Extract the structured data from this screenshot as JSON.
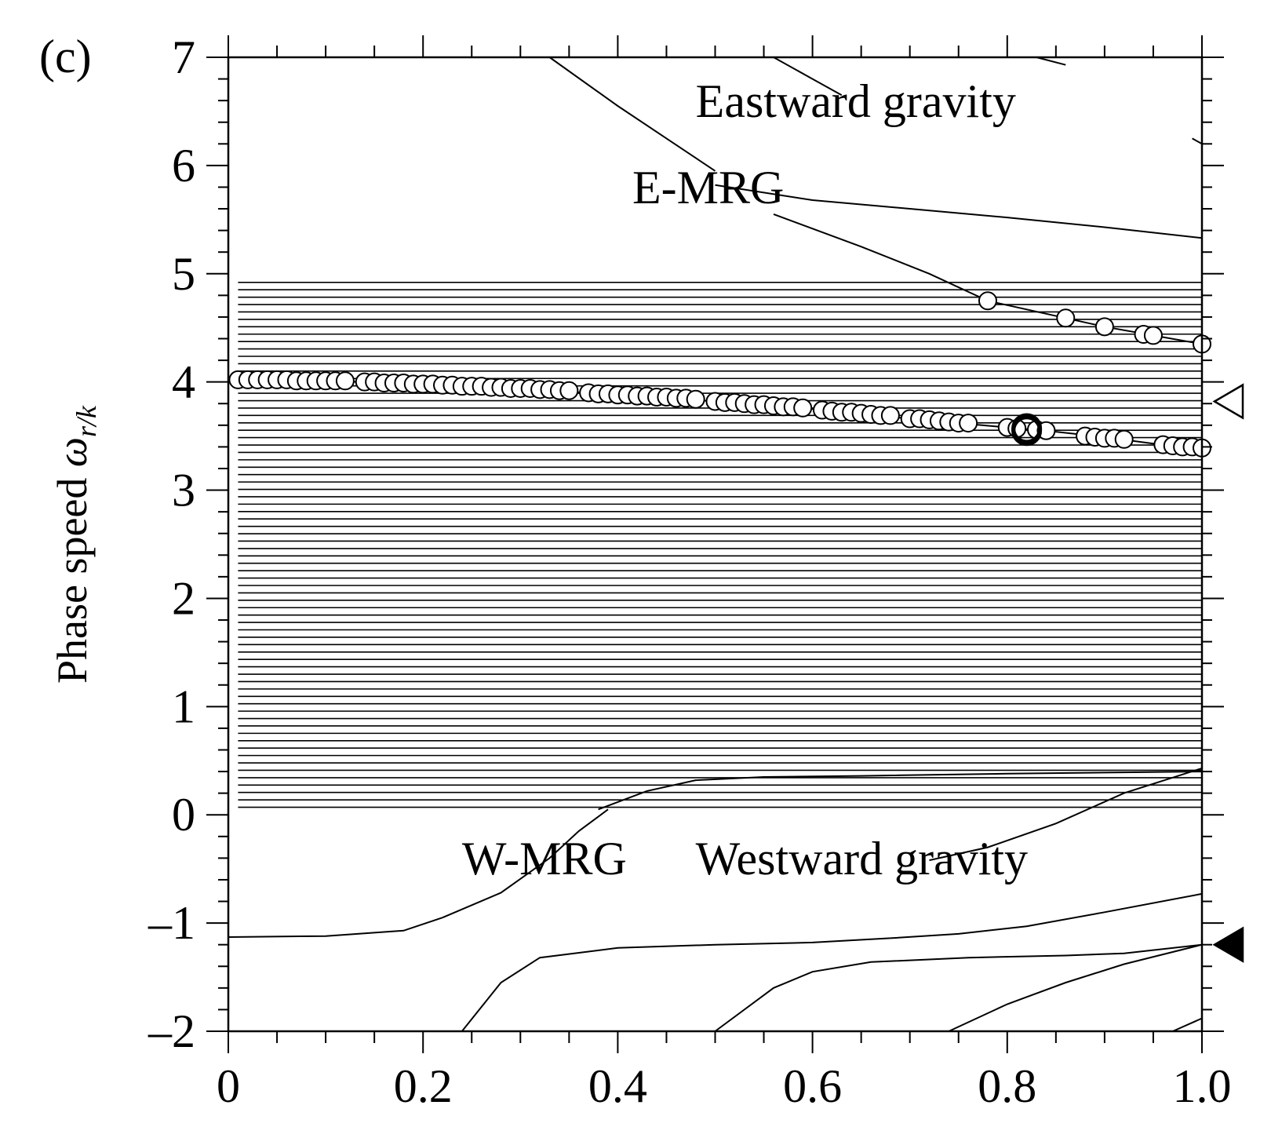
{
  "panel_label": "(c)",
  "chart_data": {
    "type": "line",
    "title": "",
    "xlabel": "",
    "ylabel": "Phase speed ω_r/k",
    "ylabel_parts": {
      "main": "Phase speed ",
      "symbol": "ω",
      "subscript": "r/k"
    },
    "xlim": [
      0,
      1.0
    ],
    "ylim": [
      -2,
      7
    ],
    "xticks": [
      "0",
      "0.2",
      "0.4",
      "0.6",
      "0.8",
      "1.0"
    ],
    "yticks": [
      "–2",
      "–1",
      "0",
      "1",
      "2",
      "3",
      "4",
      "5",
      "6",
      "7"
    ],
    "grid": false,
    "legend": "none",
    "annotations": [
      {
        "text": "Eastward gravity",
        "x": 0.48,
        "y": 6.45
      },
      {
        "text": "E-MRG",
        "x": 0.415,
        "y": 5.65
      },
      {
        "text": "W-MRG",
        "x": 0.24,
        "y": -0.55
      },
      {
        "text": "Westward gravity",
        "x": 0.48,
        "y": -0.55
      }
    ],
    "continuum": {
      "y_min": 0.07,
      "y_max": 4.92,
      "count": 72,
      "x_start": 0.01,
      "x_end": 1.0
    },
    "series": [
      {
        "style": "thin-line",
        "x": [
          0.33,
          0.4,
          0.45,
          0.5
        ],
        "y": [
          7.0,
          6.55,
          6.25,
          5.95
        ]
      },
      {
        "style": "thin-line",
        "x": [
          0.56,
          0.6,
          0.63
        ],
        "y": [
          7.0,
          6.8,
          6.65
        ]
      },
      {
        "style": "thin-line",
        "x": [
          0.83,
          0.86
        ],
        "y": [
          7.0,
          6.93
        ]
      },
      {
        "style": "thin-line",
        "x": [
          0.99,
          1.0
        ],
        "y": [
          6.25,
          6.2
        ]
      },
      {
        "style": "thin-line",
        "x": [
          0.5,
          0.6,
          0.7,
          0.8,
          0.9,
          1.0
        ],
        "y": [
          5.82,
          5.68,
          5.6,
          5.52,
          5.43,
          5.33
        ]
      },
      {
        "style": "thin-line",
        "x": [
          0.56,
          0.65,
          0.72,
          0.78,
          0.86,
          0.9,
          0.95,
          1.0
        ],
        "y": [
          5.55,
          5.25,
          5.0,
          4.75,
          4.59,
          4.51,
          4.43,
          4.35
        ]
      },
      {
        "style": "thin-line",
        "x": [
          0.01,
          0.1,
          0.2,
          0.3,
          0.4,
          0.5,
          0.6,
          0.7,
          0.8,
          0.85,
          0.9,
          0.95,
          1.0
        ],
        "y": [
          4.02,
          4.01,
          3.98,
          3.94,
          3.88,
          3.82,
          3.75,
          3.66,
          3.58,
          3.54,
          3.49,
          3.43,
          3.38
        ]
      },
      {
        "style": "thin-line",
        "x": [
          0.38,
          0.43,
          0.48,
          0.55,
          0.65,
          0.8,
          0.9,
          1.0
        ],
        "y": [
          0.05,
          0.22,
          0.32,
          0.35,
          0.36,
          0.38,
          0.39,
          0.4
        ]
      },
      {
        "style": "thin-line",
        "x": [
          0.22,
          0.28,
          0.33,
          0.36,
          0.39
        ],
        "y": [
          -0.95,
          -0.72,
          -0.4,
          -0.15,
          0.05
        ]
      },
      {
        "style": "thin-line",
        "x": [
          0.0,
          0.1,
          0.18,
          0.22
        ],
        "y": [
          -1.13,
          -1.12,
          -1.07,
          -0.95
        ]
      },
      {
        "style": "thin-line",
        "x": [
          0.72,
          0.78,
          0.85,
          0.92,
          1.0
        ],
        "y": [
          -0.42,
          -0.3,
          -0.08,
          0.2,
          0.43
        ]
      },
      {
        "style": "thin-line",
        "x": [
          0.24,
          0.28,
          0.32,
          0.4,
          0.5,
          0.6,
          0.68
        ],
        "y": [
          -2.0,
          -1.55,
          -1.32,
          -1.23,
          -1.2,
          -1.18,
          -1.14
        ]
      },
      {
        "style": "thin-line",
        "x": [
          0.68,
          0.75,
          0.82,
          0.9,
          1.0
        ],
        "y": [
          -1.14,
          -1.1,
          -1.03,
          -0.9,
          -0.73
        ]
      },
      {
        "style": "thin-line",
        "x": [
          0.5,
          0.56,
          0.6,
          0.66,
          0.76,
          0.86,
          0.92,
          1.0
        ],
        "y": [
          -2.0,
          -1.6,
          -1.45,
          -1.36,
          -1.32,
          -1.3,
          -1.28,
          -1.2
        ]
      },
      {
        "style": "thin-line",
        "x": [
          0.74,
          0.8,
          0.86,
          0.92,
          1.0
        ],
        "y": [
          -2.0,
          -1.75,
          -1.55,
          -1.38,
          -1.2
        ]
      },
      {
        "style": "thin-line",
        "x": [
          0.97,
          1.0
        ],
        "y": [
          -2.0,
          -1.88
        ]
      },
      {
        "style": "circles",
        "x": [
          0.78,
          0.86,
          0.9,
          0.94,
          0.95,
          1.0
        ],
        "y": [
          4.75,
          4.59,
          4.51,
          4.44,
          4.43,
          4.35
        ]
      },
      {
        "style": "circles",
        "x": [
          0.01,
          0.02,
          0.03,
          0.04,
          0.05,
          0.06,
          0.07,
          0.08,
          0.09,
          0.1,
          0.11,
          0.12,
          0.14,
          0.15,
          0.16,
          0.17,
          0.18,
          0.19,
          0.2,
          0.21,
          0.22,
          0.23,
          0.24,
          0.25,
          0.26,
          0.27,
          0.28,
          0.29,
          0.3,
          0.31,
          0.32,
          0.33,
          0.34,
          0.35,
          0.37,
          0.38,
          0.39,
          0.4,
          0.41,
          0.42,
          0.43,
          0.44,
          0.45,
          0.46,
          0.47,
          0.48,
          0.5,
          0.51,
          0.52,
          0.53,
          0.54,
          0.55,
          0.56,
          0.57,
          0.58,
          0.59,
          0.61,
          0.62,
          0.63,
          0.64,
          0.65,
          0.66,
          0.67,
          0.68,
          0.7,
          0.71,
          0.72,
          0.73,
          0.74,
          0.75,
          0.76,
          0.8,
          0.81,
          0.83,
          0.84,
          0.88,
          0.89,
          0.9,
          0.91,
          0.92,
          0.96,
          0.97,
          0.98,
          0.99,
          1.0
        ],
        "y": [
          4.02,
          4.02,
          4.02,
          4.02,
          4.02,
          4.02,
          4.01,
          4.01,
          4.01,
          4.01,
          4.01,
          4.01,
          4.0,
          4.0,
          3.99,
          3.99,
          3.99,
          3.98,
          3.98,
          3.98,
          3.97,
          3.97,
          3.96,
          3.96,
          3.96,
          3.95,
          3.95,
          3.94,
          3.94,
          3.94,
          3.93,
          3.93,
          3.92,
          3.92,
          3.9,
          3.89,
          3.89,
          3.88,
          3.88,
          3.87,
          3.87,
          3.86,
          3.86,
          3.85,
          3.85,
          3.84,
          3.82,
          3.81,
          3.81,
          3.8,
          3.79,
          3.79,
          3.78,
          3.77,
          3.77,
          3.76,
          3.74,
          3.73,
          3.72,
          3.72,
          3.71,
          3.7,
          3.69,
          3.69,
          3.66,
          3.66,
          3.65,
          3.64,
          3.63,
          3.62,
          3.62,
          3.58,
          3.57,
          3.56,
          3.55,
          3.5,
          3.49,
          3.48,
          3.48,
          3.47,
          3.42,
          3.41,
          3.4,
          3.4,
          3.39
        ]
      },
      {
        "style": "bold-circles",
        "x": [
          0.82,
          0.82,
          0.82
        ],
        "y": [
          3.55,
          3.56,
          3.57
        ]
      }
    ],
    "markers": [
      {
        "shape": "open-triangle-left",
        "y": 3.82
      },
      {
        "shape": "filled-triangle-left",
        "y": -1.2
      }
    ]
  }
}
